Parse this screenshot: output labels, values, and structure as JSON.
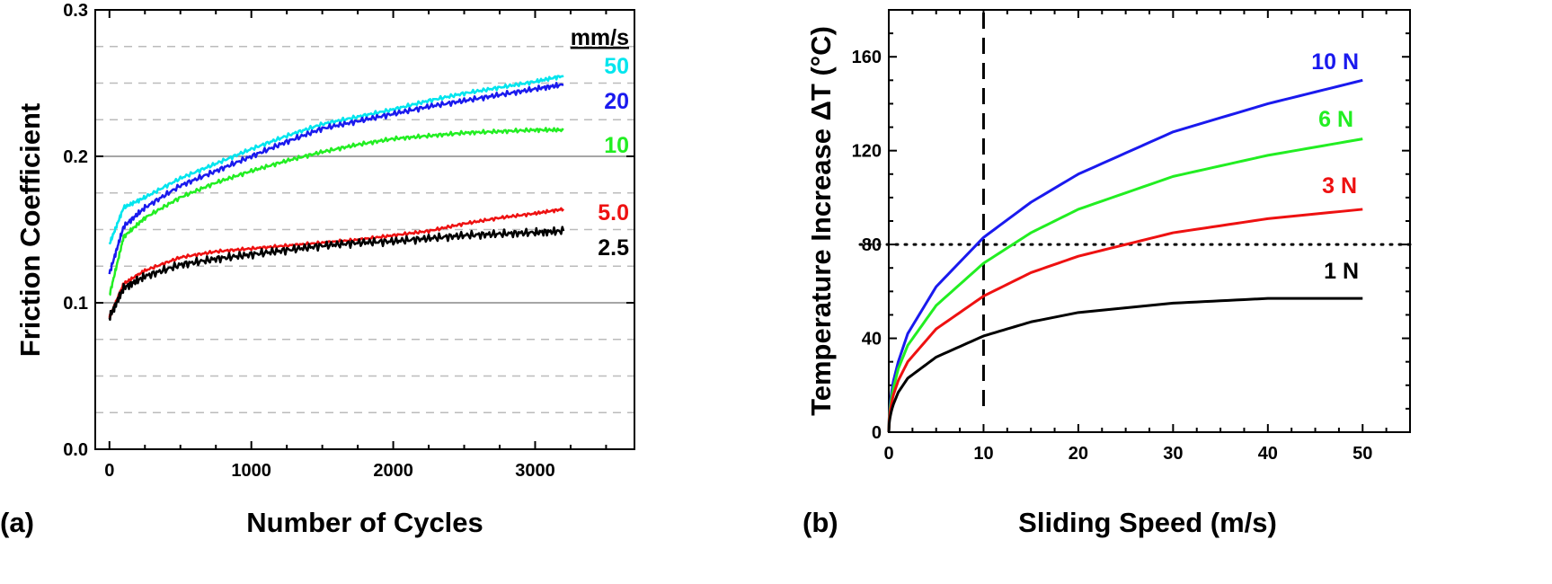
{
  "chart_data": [
    {
      "panel_label": "(a)",
      "type": "line",
      "xlabel": "Number of Cycles",
      "ylabel": "Friction Coefficient",
      "xlim": [
        -100,
        3700
      ],
      "ylim": [
        0.0,
        0.3
      ],
      "xticks": [
        "0",
        "1000",
        "2000",
        "3000"
      ],
      "xtick_values": [
        0,
        1000,
        2000,
        3000
      ],
      "yticks": [
        "0.0",
        "0.1",
        "0.2",
        "0.3"
      ],
      "ytick_values": [
        0.0,
        0.1,
        0.2,
        0.3
      ],
      "grid": {
        "major": "solid gray at 0.1, 0.2",
        "minor": "dashed light gray every 0.025"
      },
      "legend_title": "mm/s",
      "legend_placement": "right, inline at line ends",
      "x": [
        0,
        100,
        250,
        500,
        750,
        1000,
        1250,
        1500,
        1750,
        2000,
        2250,
        2500,
        2750,
        3000,
        3200
      ],
      "series": [
        {
          "name": "50",
          "color": "#00e5ee",
          "values": [
            0.14,
            0.165,
            0.172,
            0.185,
            0.195,
            0.205,
            0.214,
            0.222,
            0.227,
            0.232,
            0.238,
            0.243,
            0.247,
            0.251,
            0.255
          ]
        },
        {
          "name": "20",
          "color": "#1a1aee",
          "values": [
            0.12,
            0.152,
            0.165,
            0.18,
            0.19,
            0.2,
            0.21,
            0.219,
            0.224,
            0.229,
            0.234,
            0.238,
            0.242,
            0.246,
            0.249
          ]
        },
        {
          "name": "10",
          "color": "#22ee22",
          "values": [
            0.105,
            0.145,
            0.158,
            0.172,
            0.182,
            0.19,
            0.197,
            0.203,
            0.208,
            0.212,
            0.214,
            0.216,
            0.217,
            0.218,
            0.218
          ]
        },
        {
          "name": "5.0",
          "color": "#ee1111",
          "values": [
            0.09,
            0.113,
            0.122,
            0.131,
            0.135,
            0.137,
            0.139,
            0.141,
            0.143,
            0.146,
            0.149,
            0.154,
            0.158,
            0.161,
            0.164
          ]
        },
        {
          "name": "2.5",
          "color": "#000000",
          "values": [
            0.09,
            0.11,
            0.118,
            0.126,
            0.13,
            0.133,
            0.136,
            0.139,
            0.141,
            0.142,
            0.144,
            0.146,
            0.147,
            0.148,
            0.149
          ]
        }
      ]
    },
    {
      "panel_label": "(b)",
      "type": "line",
      "xlabel": "Sliding Speed (m/s)",
      "ylabel": "Temperature Increase ΔT (°C)",
      "xlim": [
        0,
        55
      ],
      "ylim": [
        0,
        180
      ],
      "xticks": [
        "0",
        "10",
        "20",
        "30",
        "40",
        "50"
      ],
      "xtick_values": [
        0,
        10,
        20,
        30,
        40,
        50
      ],
      "yticks": [
        "0",
        "40",
        "80",
        "120",
        "160"
      ],
      "ytick_values": [
        0,
        40,
        80,
        120,
        160
      ],
      "grid": false,
      "legend_placement": "right, inline above line ends",
      "reference_lines": [
        {
          "orientation": "vertical",
          "value": 10,
          "style": "dashed"
        },
        {
          "orientation": "horizontal",
          "value": 80,
          "style": "dotted"
        }
      ],
      "x": [
        0,
        0.5,
        1,
        2,
        5,
        10,
        15,
        20,
        30,
        40,
        50
      ],
      "series": [
        {
          "name": "10 N",
          "color": "#1a1aee",
          "values": [
            0,
            22,
            30,
            42,
            62,
            83,
            98,
            110,
            128,
            140,
            150
          ]
        },
        {
          "name": "6 N",
          "color": "#22ee22",
          "values": [
            0,
            19,
            27,
            37,
            54,
            72,
            85,
            95,
            109,
            118,
            125
          ]
        },
        {
          "name": "3 N",
          "color": "#ee1111",
          "values": [
            0,
            16,
            22,
            30,
            44,
            58,
            68,
            75,
            85,
            91,
            95
          ]
        },
        {
          "name": "1 N",
          "color": "#000000",
          "values": [
            0,
            12,
            17,
            23,
            32,
            41,
            47,
            51,
            55,
            57,
            57
          ]
        }
      ]
    }
  ]
}
